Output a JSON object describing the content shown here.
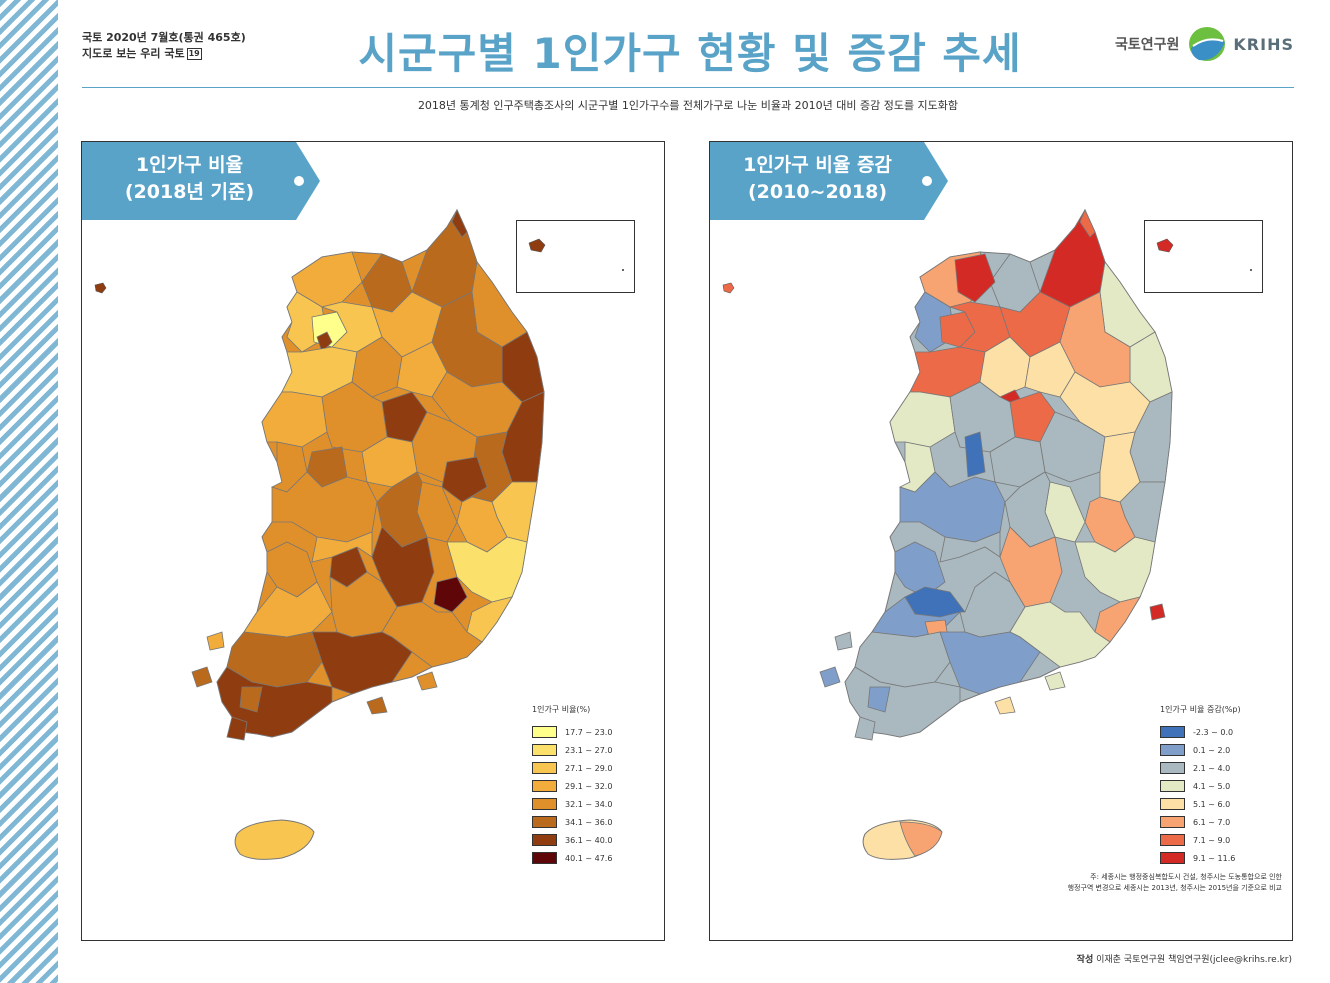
{
  "header": {
    "publication_line1": "국토 2020년 7월호(통권 465호)",
    "publication_line2": "지도로 보는 우리 국토",
    "issue_number": "19",
    "title": "시군구별 1인가구 현황 및 증감 추세",
    "subtitle": "2018년 통계청 인구주택총조사의 시군구별 1인가구수를 전체가구로 나눈 비율과 2010년 대비 증감 정도를 지도화함"
  },
  "logo": {
    "name_kr": "국토연구원",
    "name_en": "KRIHS",
    "colors": [
      "#6cbf3f",
      "#3a8fc6"
    ]
  },
  "maps": [
    {
      "title_line1": "1인가구 비율",
      "title_line2": "(2018년 기준)",
      "legend_title": "1인가구 비율(%)",
      "legend": [
        {
          "label": "17.7 ~ 23.0",
          "color": "#ffff8c"
        },
        {
          "label": "23.1 ~ 27.0",
          "color": "#fbe16b"
        },
        {
          "label": "27.1 ~ 29.0",
          "color": "#f8c650"
        },
        {
          "label": "29.1 ~ 32.0",
          "color": "#f2ac3b"
        },
        {
          "label": "32.1 ~ 34.0",
          "color": "#e0902a"
        },
        {
          "label": "34.1 ~ 36.0",
          "color": "#b96a1d"
        },
        {
          "label": "36.1 ~ 40.0",
          "color": "#8f3d10"
        },
        {
          "label": "40.1 ~ 47.6",
          "color": "#5e0608"
        }
      ]
    },
    {
      "title_line1": "1인가구 비율 증감",
      "title_line2": "(2010~2018)",
      "legend_title": "1인가구 비율 증감(%p)",
      "legend": [
        {
          "label": "-2.3 ~ 0.0",
          "color": "#3f72b9"
        },
        {
          "label": "0.1 ~ 2.0",
          "color": "#7f9ec9"
        },
        {
          "label": "2.1 ~ 4.0",
          "color": "#a9b9bf"
        },
        {
          "label": "4.1 ~ 5.0",
          "color": "#e3e8c5"
        },
        {
          "label": "5.1 ~ 6.0",
          "color": "#fde0a6"
        },
        {
          "label": "6.1 ~ 7.0",
          "color": "#f7a472"
        },
        {
          "label": "7.1 ~ 9.0",
          "color": "#ec6a48"
        },
        {
          "label": "9.1 ~ 11.6",
          "color": "#d42a25"
        }
      ],
      "note_line1": "주: 세종시는 행정중심복합도시 건설, 청주시는 도농통합으로 인한",
      "note_line2": "행정구역 변경으로 세종시는 2013년, 청주시는 2015년을 기준으로 비교"
    }
  ],
  "credit": {
    "label": "작성",
    "text": "이재춘 국토연구원 책임연구원(jclee@krihs.re.kr)"
  }
}
